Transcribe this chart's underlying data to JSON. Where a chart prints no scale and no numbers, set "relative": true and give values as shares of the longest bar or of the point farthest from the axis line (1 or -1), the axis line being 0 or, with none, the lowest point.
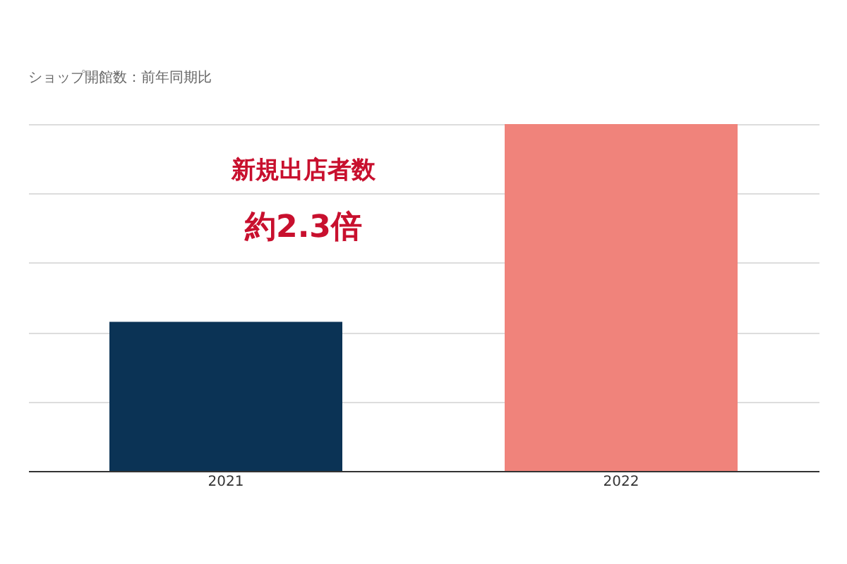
{
  "chart_data": {
    "type": "bar",
    "title": "ショップ開館数：前年同期比",
    "categories": [
      "2021",
      "2022"
    ],
    "values": [
      0.43,
      1
    ],
    "colors": [
      "#0b3355",
      "#f0837b"
    ],
    "relative": true,
    "grid": "y",
    "annotations": [
      "新規出店者数",
      "約2.3倍"
    ]
  }
}
